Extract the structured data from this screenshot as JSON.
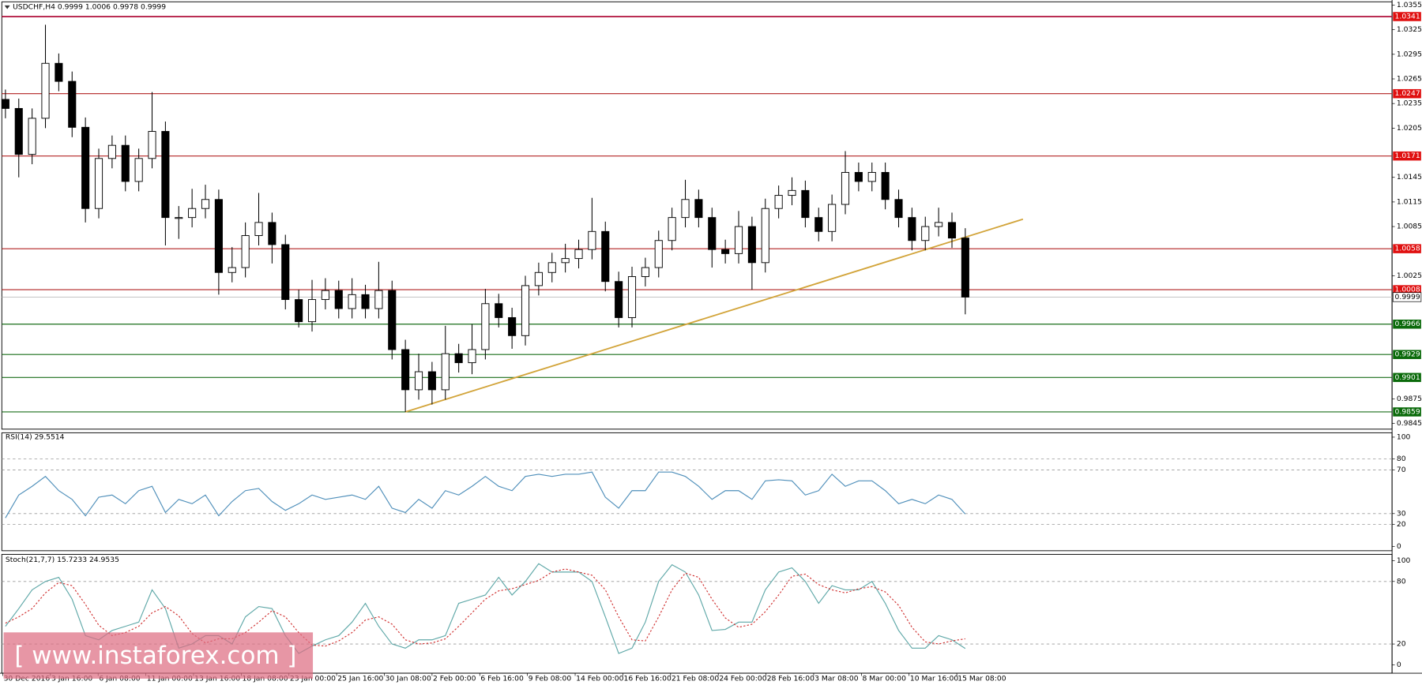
{
  "time_axis": [
    "30 Dec 2016",
    "3 Jan 16:00",
    "6 Jan 08:00",
    "11 Jan 00:00",
    "13 Jan 16:00",
    "18 Jan 08:00",
    "23 Jan 00:00",
    "25 Jan 16:00",
    "30 Jan 08:00",
    "2 Feb 00:00",
    "6 Feb 16:00",
    "9 Feb 08:00",
    "14 Feb 00:00",
    "16 Feb 16:00",
    "21 Feb 08:00",
    "24 Feb 00:00",
    "28 Feb 16:00",
    "3 Mar 08:00",
    "8 Mar 00:00",
    "10 Mar 16:00",
    "15 Mar 08:00"
  ],
  "watermark": "[ www.instaforex.com ]",
  "chart_data": [
    {
      "type": "candlestick",
      "title": "USDCHF,H4  0.9999 1.0006 0.9978 0.9999",
      "open": [
        1.024,
        1.0229,
        1.0173,
        1.0217,
        1.0284,
        1.0262,
        1.0206,
        1.0107,
        1.0168,
        1.0184,
        1.014,
        1.0168,
        1.0201,
        1.0096,
        1.0096,
        1.0107,
        1.0118,
        1.0029,
        1.0035,
        1.0074,
        1.009,
        1.0063,
        0.9996,
        0.9969,
        0.9996,
        1.0007,
        0.9985,
        1.0002,
        0.9985,
        1.0007,
        0.9935,
        0.9886,
        0.9908,
        0.9886,
        0.993,
        0.9919,
        0.9935,
        0.9991,
        0.9974,
        0.9952,
        1.0013,
        1.0029,
        1.0041,
        1.0046,
        1.0057,
        1.0079,
        1.0018,
        0.9974,
        1.0024,
        1.0035,
        1.0068,
        1.0096,
        1.0118,
        1.0096,
        1.0057,
        1.0052,
        1.0085,
        1.0041,
        1.0107,
        1.0123,
        1.0129,
        1.0096,
        1.0079,
        1.0112,
        1.0151,
        1.014,
        1.0151,
        1.0118,
        1.0096,
        1.0068,
        1.0085,
        1.009,
        1.0071
      ],
      "high": [
        1.0252,
        1.0241,
        1.0229,
        1.0331,
        1.0296,
        1.0274,
        1.0218,
        1.018,
        1.0196,
        1.0196,
        1.018,
        1.0249,
        1.0213,
        1.011,
        1.0131,
        1.0136,
        1.013,
        1.006,
        1.009,
        1.0126,
        1.0102,
        1.0075,
        1.0008,
        1.002,
        1.0022,
        1.0019,
        1.0022,
        1.0014,
        1.0042,
        1.0019,
        0.9947,
        0.993,
        0.992,
        0.9964,
        0.9942,
        0.9966,
        1.0009,
        1.0003,
        0.9986,
        1.0025,
        1.0041,
        1.0053,
        1.0064,
        1.0069,
        1.012,
        1.0091,
        1.003,
        1.0036,
        1.0047,
        1.008,
        1.0108,
        1.0142,
        1.013,
        1.0108,
        1.0069,
        1.0104,
        1.0097,
        1.0119,
        1.0135,
        1.0145,
        1.0141,
        1.0108,
        1.0124,
        1.0177,
        1.0163,
        1.0163,
        1.0163,
        1.013,
        1.0108,
        1.0097,
        1.0108,
        1.0102,
        1.0083
      ],
      "low": [
        1.0217,
        1.0145,
        1.0161,
        1.0205,
        1.025,
        1.0194,
        1.009,
        1.0095,
        1.0156,
        1.0128,
        1.0128,
        1.0156,
        1.0062,
        1.007,
        1.0084,
        1.0095,
        1.0002,
        1.0017,
        1.0023,
        1.0062,
        1.004,
        0.9984,
        0.9962,
        0.9957,
        0.9984,
        0.9973,
        0.9973,
        0.9973,
        0.9973,
        0.9923,
        0.9859,
        0.9874,
        0.9868,
        0.9874,
        0.9907,
        0.9905,
        0.9923,
        0.9962,
        0.9936,
        0.994,
        1.0001,
        1.0017,
        1.0029,
        1.0034,
        1.0045,
        1.0006,
        0.9962,
        0.9962,
        1.0012,
        1.0023,
        1.0056,
        1.0084,
        1.0084,
        1.0035,
        1.004,
        1.004,
        1.0008,
        1.0029,
        1.0095,
        1.0111,
        1.0084,
        1.0067,
        1.0067,
        1.01,
        1.0128,
        1.0128,
        1.0106,
        1.0084,
        1.0056,
        1.0056,
        1.0073,
        1.0059,
        0.9978
      ],
      "close": [
        1.0229,
        1.0173,
        1.0217,
        1.0284,
        1.0262,
        1.0206,
        1.0107,
        1.0168,
        1.0184,
        1.014,
        1.0168,
        1.0201,
        1.0096,
        1.0096,
        1.0107,
        1.0118,
        1.0029,
        1.0035,
        1.0074,
        1.009,
        1.0063,
        0.9996,
        0.9969,
        0.9996,
        1.0007,
        0.9985,
        1.0002,
        0.9985,
        1.0007,
        0.9935,
        0.9886,
        0.9908,
        0.9886,
        0.993,
        0.9919,
        0.9935,
        0.9991,
        0.9974,
        0.9952,
        1.0013,
        1.0029,
        1.0041,
        1.0046,
        1.0057,
        1.0079,
        1.0018,
        0.9974,
        1.0024,
        1.0035,
        1.0068,
        1.0096,
        1.0118,
        1.0096,
        1.0057,
        1.0052,
        1.0085,
        1.0041,
        1.0107,
        1.0123,
        1.0129,
        1.0096,
        1.0079,
        1.0112,
        1.0151,
        1.014,
        1.0151,
        1.0118,
        1.0096,
        1.0068,
        1.0085,
        1.009,
        1.0071,
        0.9999
      ],
      "up_color": "#ffffff",
      "down_color": "#000000",
      "ylim": [
        0.9838,
        1.0359
      ],
      "yticks": [
        1.0355,
        1.0325,
        1.0295,
        1.0265,
        1.0235,
        1.0205,
        1.0145,
        1.0115,
        1.0085,
        1.0025,
        0.9875,
        0.9845
      ],
      "levels": [
        {
          "value": 1.0341,
          "color": "#b0103c"
        },
        {
          "value": 1.0247,
          "color": "#b22222"
        },
        {
          "value": 1.0171,
          "color": "#b22222"
        },
        {
          "value": 1.0058,
          "color": "#b22222"
        },
        {
          "value": 1.0008,
          "color": "#b22222"
        },
        {
          "value": 0.9966,
          "color": "#1a6e1a"
        },
        {
          "value": 0.9929,
          "color": "#1a6e1a"
        },
        {
          "value": 0.9901,
          "color": "#1a6e1a"
        },
        {
          "value": 0.9859,
          "color": "#1a6e1a"
        }
      ],
      "current_price": 0.9999,
      "trendline": {
        "start": 0.9859,
        "end": 1.0094,
        "color": "#d2a43a"
      }
    },
    {
      "type": "line",
      "title": "RSI(14) 29.5514",
      "series": [
        {
          "color": "#4f8fba",
          "values": [
            26,
            47,
            55,
            64,
            51,
            43,
            28,
            45,
            47,
            39,
            51,
            55,
            31,
            43,
            39,
            47,
            28,
            41,
            51,
            53,
            41,
            33,
            39,
            47,
            43,
            45,
            47,
            43,
            55,
            35,
            31,
            43,
            35,
            51,
            47,
            55,
            64,
            55,
            51,
            64,
            66,
            64,
            66,
            66,
            68,
            45,
            35,
            51,
            51,
            68,
            68,
            64,
            55,
            43,
            51,
            51,
            43,
            60,
            61,
            60,
            47,
            51,
            66,
            55,
            60,
            60,
            51,
            39,
            43,
            39,
            47,
            43,
            29.6
          ]
        }
      ],
      "ylim": [
        -4,
        104
      ],
      "yticks": [
        100,
        80,
        70,
        30,
        20,
        0
      ]
    },
    {
      "type": "line",
      "title": "Stoch(21,7,7) 15.7233 24.9535",
      "series": [
        {
          "color": "#5fa8a8",
          "values": [
            37,
            54,
            72,
            80,
            84,
            63,
            28,
            24,
            33,
            37,
            41,
            72,
            54,
            16,
            20,
            28,
            28,
            20,
            46,
            56,
            54,
            28,
            11,
            18,
            24,
            28,
            41,
            59,
            37,
            20,
            16,
            24,
            24,
            28,
            59,
            63,
            67,
            84,
            67,
            80,
            97,
            89,
            89,
            89,
            80,
            46,
            11,
            16,
            41,
            80,
            96,
            89,
            67,
            33,
            34,
            41,
            41,
            72,
            89,
            93,
            80,
            59,
            76,
            72,
            72,
            80,
            59,
            33,
            16,
            16,
            28,
            24,
            15.7
          ]
        },
        {
          "color": "#d03030",
          "dashed": true,
          "values": [
            40,
            46,
            54,
            69,
            79,
            76,
            58,
            38,
            28,
            31,
            37,
            50,
            56,
            47,
            30,
            21,
            25,
            25,
            31,
            41,
            52,
            46,
            31,
            19,
            18,
            23,
            31,
            43,
            46,
            39,
            24,
            20,
            21,
            25,
            37,
            50,
            63,
            71,
            73,
            77,
            81,
            89,
            92,
            89,
            86,
            72,
            46,
            24,
            23,
            46,
            72,
            88,
            84,
            63,
            45,
            36,
            39,
            51,
            67,
            85,
            87,
            77,
            72,
            69,
            73,
            75,
            70,
            57,
            36,
            22,
            20,
            23,
            25
          ]
        }
      ],
      "ylim": [
        -8,
        106
      ],
      "yticks": [
        100,
        80,
        20,
        0
      ]
    }
  ]
}
